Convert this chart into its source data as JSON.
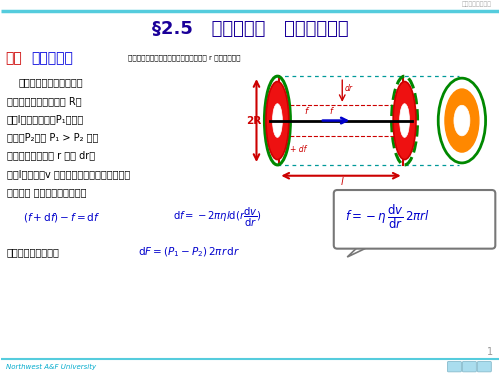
{
  "title": "§2.5   泊肓叶定律   斯托克斯定律",
  "section_label": "一、",
  "section_name": "泊肓叶定律",
  "section_sub": "（描述水平管道中牛顿流体的流速随半径 r 的分布规律）",
  "body_lines": [
    "右图表示无限长均匀水平",
    "管的一段，设管半径为 R，",
    "长为l，左端压强为P₁，右端",
    "压强为P₂，且 P₁ > P₂ 。在",
    "管内选取一半径为 r 厚为 dr，",
    "长为l，流速为v 的与管同轴的藁圆筒状流层。",
    "流层所受 的内摩擦力的合力为"
  ],
  "line_net_pressure": "流层所受的净压力为",
  "watermark": "大学物理电子教室",
  "footer_text": "Northwest A&F University",
  "title_color": "#1a0099",
  "section_color": "#0000dd",
  "red_color": "#cc0000",
  "green_color": "#008800",
  "orange_color": "#ff8800",
  "blue_arrow_color": "#0000cc",
  "formula_color": "#0000cc",
  "text_color": "#000000",
  "footer_color": "#00aacc",
  "header_line_color": "#55ccdd",
  "bg_color": "#ffffff"
}
